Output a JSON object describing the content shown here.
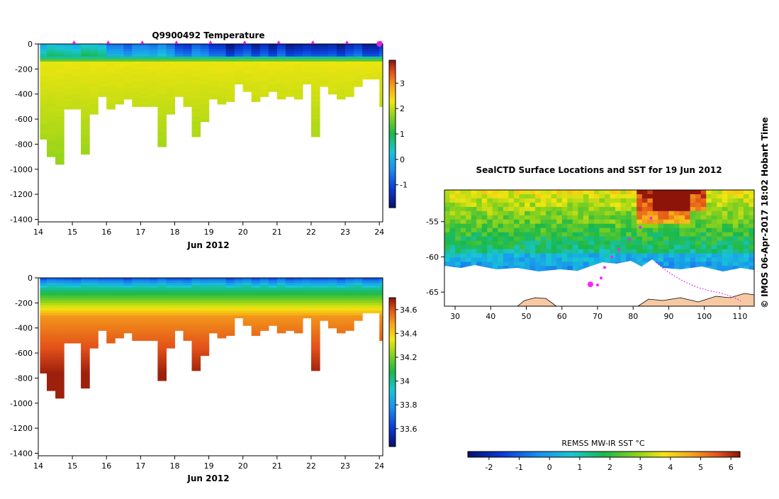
{
  "chart_data": [
    {
      "type": "heatmap",
      "name": "temperature",
      "title": "Q9900492  Temperature",
      "xlabel": "Jun 2012",
      "ylabel": "",
      "xlim": [
        14,
        24.1
      ],
      "ylim": [
        -1420,
        0
      ],
      "x_ticks": [
        "14",
        "15",
        "16",
        "17",
        "18",
        "19",
        "20",
        "21",
        "22",
        "23",
        "24"
      ],
      "y_ticks": [
        "0",
        "-200",
        "-400",
        "-600",
        "-800",
        "-1000",
        "-1200",
        "-1400"
      ],
      "colorbar": {
        "min": -1.9,
        "max": 3.9,
        "ticks": [
          "-1",
          "0",
          "1",
          "2",
          "3"
        ],
        "tick_values": [
          -1,
          0,
          1,
          2,
          3
        ]
      },
      "profile_marker_days": [
        15.0,
        16.0,
        17.0,
        18.0,
        19.0,
        20.0,
        21.0,
        22.0,
        23.0,
        24.0
      ],
      "profiles": [
        {
          "t": 14.05,
          "depth": -750
        },
        {
          "t": 14.25,
          "depth": -900
        },
        {
          "t": 14.5,
          "depth": -960
        },
        {
          "t": 14.75,
          "depth": -520
        },
        {
          "t": 15.0,
          "depth": -520
        },
        {
          "t": 15.25,
          "depth": -880
        },
        {
          "t": 15.5,
          "depth": -550
        },
        {
          "t": 15.75,
          "depth": -410
        },
        {
          "t": 16.0,
          "depth": -510
        },
        {
          "t": 16.25,
          "depth": -480
        },
        {
          "t": 16.5,
          "depth": -430
        },
        {
          "t": 16.75,
          "depth": -490
        },
        {
          "t": 17.0,
          "depth": -500
        },
        {
          "t": 17.25,
          "depth": -500
        },
        {
          "t": 17.5,
          "depth": -810
        },
        {
          "t": 17.75,
          "depth": -550
        },
        {
          "t": 18.0,
          "depth": -420
        },
        {
          "t": 18.25,
          "depth": -490
        },
        {
          "t": 18.5,
          "depth": -730
        },
        {
          "t": 18.75,
          "depth": -620
        },
        {
          "t": 19.0,
          "depth": -430
        },
        {
          "t": 19.25,
          "depth": -480
        },
        {
          "t": 19.5,
          "depth": -450
        },
        {
          "t": 19.75,
          "depth": -320
        },
        {
          "t": 20.0,
          "depth": -370
        },
        {
          "t": 20.25,
          "depth": -450
        },
        {
          "t": 20.5,
          "depth": -420
        },
        {
          "t": 20.75,
          "depth": -380
        },
        {
          "t": 21.0,
          "depth": -440
        },
        {
          "t": 21.25,
          "depth": -410
        },
        {
          "t": 21.5,
          "depth": -430
        },
        {
          "t": 21.75,
          "depth": -310
        },
        {
          "t": 22.0,
          "depth": -740
        },
        {
          "t": 22.25,
          "depth": -330
        },
        {
          "t": 22.5,
          "depth": -390
        },
        {
          "t": 22.75,
          "depth": -430
        },
        {
          "t": 23.0,
          "depth": -420
        },
        {
          "t": 23.25,
          "depth": -330
        },
        {
          "t": 23.5,
          "depth": -270
        },
        {
          "t": 23.75,
          "depth": -270
        },
        {
          "t": 24.0,
          "depth": -500
        }
      ]
    },
    {
      "type": "heatmap",
      "name": "salinity",
      "title": "",
      "xlabel": "Jun 2012",
      "ylabel": "",
      "xlim": [
        14,
        24.1
      ],
      "ylim": [
        -1420,
        0
      ],
      "x_ticks": [
        "14",
        "15",
        "16",
        "17",
        "18",
        "19",
        "20",
        "21",
        "22",
        "23",
        "24"
      ],
      "y_ticks": [
        "0",
        "-200",
        "-400",
        "-600",
        "-800",
        "-1000",
        "-1200",
        "-1400"
      ],
      "colorbar": {
        "min": 33.45,
        "max": 34.7,
        "ticks": [
          "33.6",
          "33.8",
          "34",
          "34.2",
          "34.4",
          "34.6"
        ],
        "tick_values": [
          33.6,
          33.8,
          34.0,
          34.2,
          34.4,
          34.6
        ]
      }
    },
    {
      "type": "heatmap",
      "name": "sst-map",
      "title": "SealCTD Surface Locations and SST for 19 Jun 2012",
      "xlabel": "",
      "ylabel": "",
      "xlim": [
        27,
        114
      ],
      "ylim": [
        -67,
        -50.5
      ],
      "x_ticks": [
        "30",
        "40",
        "50",
        "60",
        "70",
        "80",
        "90",
        "100",
        "110"
      ],
      "y_ticks": [
        "-55",
        "-60",
        "-65"
      ],
      "track": [
        [
          85,
          -54.5
        ],
        [
          82,
          -55.8
        ],
        [
          79,
          -57.5
        ],
        [
          76,
          -59
        ],
        [
          74,
          -60
        ],
        [
          72,
          -61.5
        ],
        [
          71,
          -63
        ],
        [
          70,
          -64
        ]
      ],
      "current_position": [
        68,
        -63.9
      ],
      "colorbar": {
        "label": "REMSS MW-IR SST °C",
        "min": -2.7,
        "max": 6.3,
        "ticks": [
          "-2",
          "-1",
          "0",
          "1",
          "2",
          "3",
          "4",
          "5",
          "6"
        ],
        "tick_values": [
          -2,
          -1,
          0,
          1,
          2,
          3,
          4,
          5,
          6
        ]
      }
    }
  ],
  "side_label": "©  IMOS 06-Apr-2017 18:02 Hobart Time"
}
